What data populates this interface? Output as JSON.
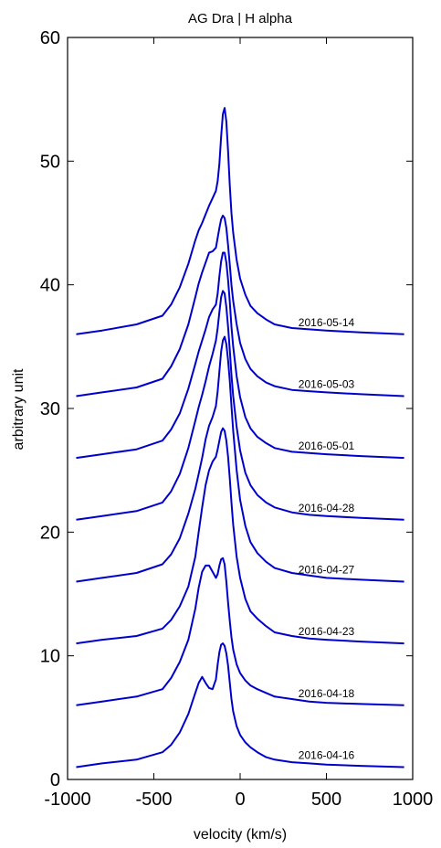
{
  "chart_data": {
    "type": "line",
    "title": "AG Dra | H alpha",
    "xlabel": "velocity (km/s)",
    "ylabel": "arbitrary unit",
    "xlim": [
      -1000,
      1000
    ],
    "ylim": [
      0,
      60
    ],
    "x_ticks": [
      -1000,
      -500,
      0,
      500,
      1000
    ],
    "x_tick_labels": [
      "-1000",
      "-500",
      "0",
      "500",
      "1000"
    ],
    "y_ticks": [
      0,
      10,
      20,
      30,
      40,
      50,
      60
    ],
    "y_tick_labels": [
      "0",
      "10",
      "20",
      "30",
      "40",
      "50",
      "60"
    ],
    "grid": false,
    "line_color": "#0000cc",
    "profile_velocity": [
      -950,
      -800,
      -600,
      -450,
      -400,
      -350,
      -300,
      -260,
      -240,
      -220,
      -200,
      -180,
      -160,
      -140,
      -130,
      -120,
      -110,
      -100,
      -90,
      -80,
      -70,
      -60,
      -50,
      -40,
      -20,
      0,
      30,
      60,
      100,
      150,
      200,
      300,
      400,
      500,
      700,
      950
    ],
    "series": [
      {
        "name": "2016-04-16",
        "offset": 1,
        "values": [
          0,
          0.3,
          0.6,
          1.2,
          1.8,
          2.8,
          4.3,
          6.0,
          6.8,
          7.3,
          6.8,
          6.4,
          6.3,
          7.1,
          8.3,
          9.3,
          9.9,
          10.0,
          9.8,
          9.2,
          8.2,
          6.8,
          5.5,
          4.5,
          3.3,
          2.6,
          2.0,
          1.6,
          1.2,
          0.8,
          0.6,
          0.4,
          0.3,
          0.2,
          0.1,
          0
        ]
      },
      {
        "name": "2016-04-18",
        "offset": 6,
        "values": [
          0,
          0.3,
          0.7,
          1.3,
          2.2,
          3.5,
          5.3,
          7.8,
          9.5,
          10.8,
          11.3,
          11.3,
          10.8,
          10.3,
          10.6,
          11.3,
          11.8,
          11.9,
          11.4,
          10.0,
          8.3,
          6.8,
          5.5,
          4.5,
          3.3,
          2.6,
          2.0,
          1.6,
          1.3,
          1.0,
          0.7,
          0.5,
          0.3,
          0.2,
          0.1,
          0
        ]
      },
      {
        "name": "2016-04-23",
        "offset": 11,
        "values": [
          0,
          0.3,
          0.6,
          1.2,
          1.9,
          3.0,
          4.6,
          7.0,
          9.0,
          11.0,
          12.8,
          14.0,
          14.7,
          15.1,
          15.7,
          16.4,
          17.1,
          17.4,
          17.2,
          16.4,
          15.1,
          13.3,
          11.4,
          9.6,
          7.0,
          5.3,
          3.6,
          2.6,
          2.0,
          1.4,
          0.9,
          0.6,
          0.4,
          0.3,
          0.15,
          0
        ]
      },
      {
        "name": "2016-04-27",
        "offset": 16,
        "values": [
          0,
          0.3,
          0.7,
          1.4,
          2.2,
          3.5,
          5.5,
          7.5,
          8.7,
          10.0,
          11.5,
          12.6,
          13.3,
          14.2,
          15.4,
          17.0,
          18.6,
          19.5,
          19.8,
          19.2,
          17.9,
          16.2,
          14.2,
          12.2,
          9.0,
          6.6,
          4.5,
          3.2,
          2.3,
          1.6,
          1.1,
          0.7,
          0.5,
          0.3,
          0.15,
          0
        ]
      },
      {
        "name": "2016-04-28",
        "offset": 21,
        "values": [
          0,
          0.3,
          0.7,
          1.4,
          2.3,
          3.7,
          5.8,
          8.0,
          9.1,
          10.1,
          11.2,
          12.4,
          13.4,
          14.5,
          15.5,
          16.8,
          18.0,
          18.5,
          18.3,
          17.2,
          15.6,
          13.7,
          11.7,
          10.0,
          7.5,
          5.6,
          3.8,
          2.8,
          2.0,
          1.4,
          1.0,
          0.6,
          0.4,
          0.3,
          0.15,
          0
        ]
      },
      {
        "name": "2016-05-01",
        "offset": 26,
        "values": [
          0,
          0.3,
          0.7,
          1.4,
          2.3,
          3.6,
          5.6,
          7.6,
          8.6,
          9.5,
          10.4,
          11.4,
          12.0,
          12.4,
          13.3,
          14.7,
          15.9,
          16.6,
          16.6,
          15.8,
          14.4,
          12.6,
          10.6,
          9.0,
          6.6,
          4.9,
          3.3,
          2.4,
          1.7,
          1.2,
          0.8,
          0.5,
          0.4,
          0.3,
          0.15,
          0
        ]
      },
      {
        "name": "2016-05-03",
        "offset": 31,
        "values": [
          0,
          0.3,
          0.7,
          1.4,
          2.4,
          3.8,
          5.8,
          8.0,
          9.1,
          10.0,
          10.8,
          11.6,
          11.7,
          12.0,
          12.8,
          13.6,
          14.3,
          14.6,
          14.4,
          13.6,
          12.2,
          10.6,
          9.0,
          7.7,
          5.8,
          4.3,
          3.0,
          2.2,
          1.6,
          1.1,
          0.8,
          0.5,
          0.4,
          0.3,
          0.15,
          0
        ]
      },
      {
        "name": "2016-05-14",
        "offset": 36,
        "values": [
          0,
          0.3,
          0.8,
          1.5,
          2.4,
          3.8,
          5.7,
          7.6,
          8.4,
          9.0,
          9.7,
          10.4,
          11.0,
          11.6,
          12.4,
          13.8,
          16.0,
          17.8,
          18.3,
          17.2,
          14.8,
          12.0,
          9.8,
          8.2,
          6.0,
          4.5,
          3.2,
          2.3,
          1.7,
          1.2,
          0.8,
          0.5,
          0.4,
          0.3,
          0.15,
          0
        ]
      }
    ]
  }
}
